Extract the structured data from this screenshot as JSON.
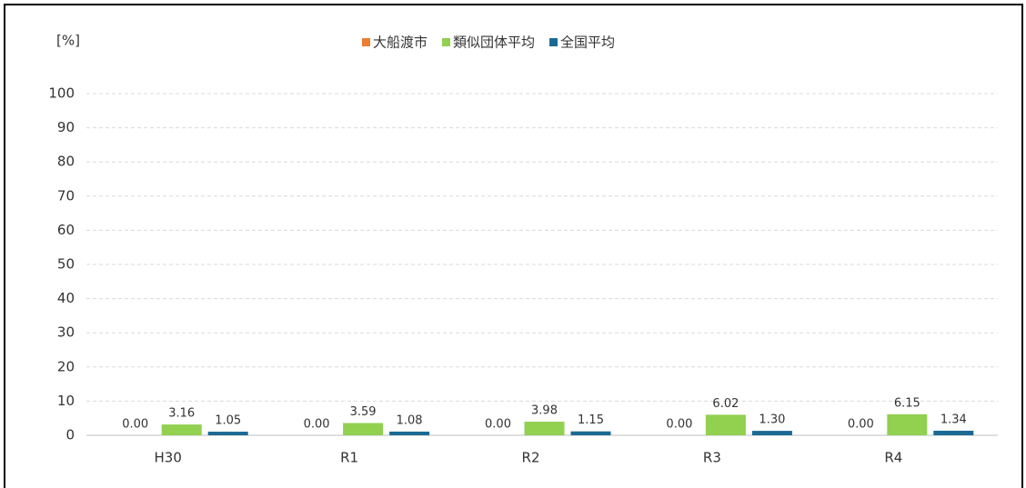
{
  "chart_data": {
    "type": "bar",
    "y_label": "[%]",
    "categories": [
      "H30",
      "R1",
      "R2",
      "R3",
      "R4"
    ],
    "series": [
      {
        "name": "大船渡市",
        "color": "#ed7d31",
        "values": [
          0,
          0,
          0,
          0,
          0
        ],
        "value_labels": [
          "0.00",
          "0.00",
          "0.00",
          "0.00",
          "0.00"
        ]
      },
      {
        "name": "類似団体平均",
        "color": "#92d050",
        "values": [
          3.16,
          3.59,
          3.98,
          6.02,
          6.15
        ],
        "value_labels": [
          "3.16",
          "3.59",
          "3.98",
          "6.02",
          "6.15"
        ]
      },
      {
        "name": "全国平均",
        "color": "#1b6a93",
        "values": [
          1.05,
          1.08,
          1.15,
          1.3,
          1.34
        ],
        "value_labels": [
          "1.05",
          "1.08",
          "1.15",
          "1.30",
          "1.34"
        ]
      }
    ],
    "ylim": [
      0,
      100
    ],
    "yticks": [
      0,
      10,
      20,
      30,
      40,
      50,
      60,
      70,
      80,
      90,
      100
    ],
    "grid": true,
    "legend": "top"
  }
}
